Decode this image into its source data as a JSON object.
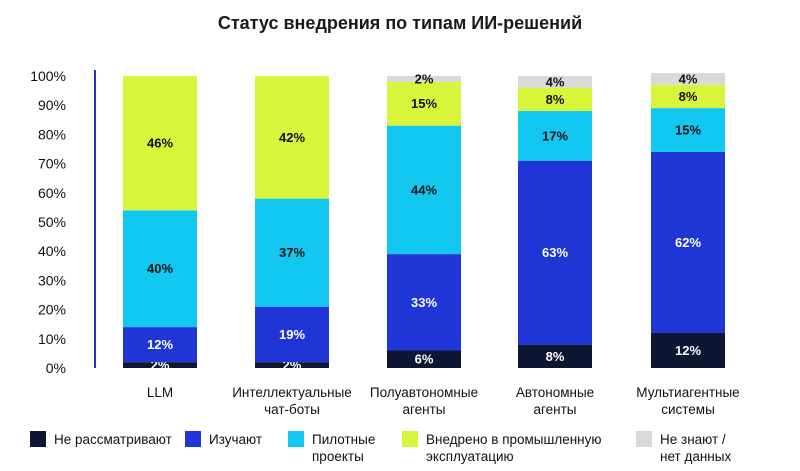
{
  "chart_data": {
    "type": "bar",
    "stacked": true,
    "title": "Статус внедрения по типам ИИ-решений",
    "ylim": [
      0,
      100
    ],
    "y_ticks": [
      "0%",
      "10%",
      "20%",
      "30%",
      "40%",
      "50%",
      "60%",
      "70%",
      "80%",
      "90%",
      "100%"
    ],
    "grid": false,
    "legend_position": "bottom",
    "categories": [
      [
        "LLM"
      ],
      [
        "Интеллектуальные",
        "чат-боты"
      ],
      [
        "Полуавтономные",
        "агенты"
      ],
      [
        "Автономные",
        "агенты"
      ],
      [
        "Мультиагентные",
        "системы"
      ]
    ],
    "series": [
      {
        "name": [
          "Не рассматривают"
        ],
        "color": "#0d1633",
        "label_color": "#ffffff",
        "values": [
          2,
          2,
          6,
          8,
          12
        ]
      },
      {
        "name": [
          "Изучают"
        ],
        "color": "#1f35d6",
        "label_color": "#ffffff",
        "values": [
          12,
          19,
          33,
          63,
          62
        ]
      },
      {
        "name": [
          "Пилотные",
          "проекты"
        ],
        "color": "#13c8f0",
        "label_color": "#111111",
        "values": [
          40,
          37,
          44,
          17,
          15
        ]
      },
      {
        "name": [
          "Внедрено в промышленную",
          "эксплуатацию"
        ],
        "color": "#d8f53c",
        "label_color": "#111111",
        "values": [
          46,
          42,
          15,
          8,
          8
        ]
      },
      {
        "name": [
          "Не знают /",
          "нет данных"
        ],
        "color": "#d9d9d9",
        "label_color": "#111111",
        "values": [
          0,
          0,
          2,
          4,
          4
        ]
      }
    ],
    "axis_color": "#2a2fc9"
  }
}
